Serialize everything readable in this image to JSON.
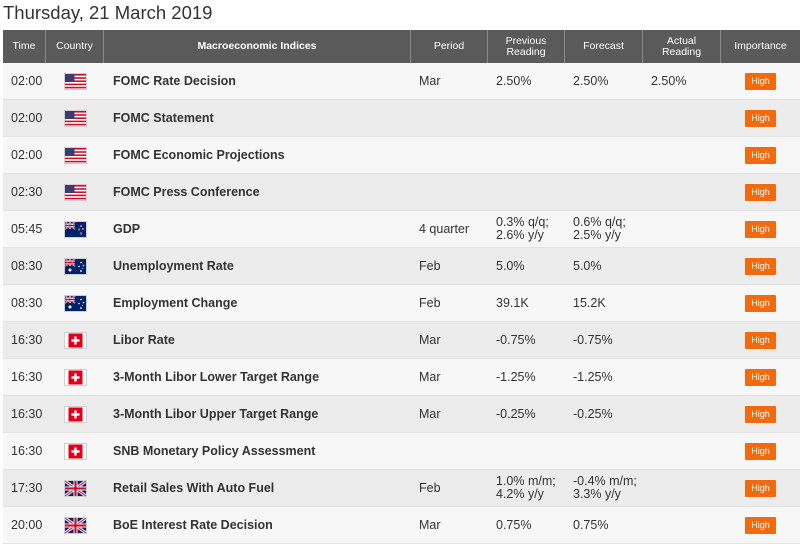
{
  "page": {
    "title": "Thursday, 21 March 2019"
  },
  "table": {
    "headers": {
      "time": "Time",
      "country": "Country",
      "index": "Macroeconomic Indices",
      "period": "Period",
      "previous": "Previous Reading",
      "forecast": "Forecast",
      "actual": "Actual Reading",
      "importance": "Importance"
    },
    "rows": [
      {
        "time": "02:00",
        "flag": "us-flag-icon",
        "index": "FOMC Rate Decision",
        "period": "Mar",
        "previous": [
          "2.50%"
        ],
        "forecast": [
          "2.50%"
        ],
        "actual": "2.50%",
        "importance": "High"
      },
      {
        "time": "02:00",
        "flag": "us-flag-icon",
        "index": "FOMC Statement",
        "period": "",
        "previous": [
          ""
        ],
        "forecast": [
          ""
        ],
        "actual": "",
        "importance": "High"
      },
      {
        "time": "02:00",
        "flag": "us-flag-icon",
        "index": "FOMC Economic Projections",
        "period": "",
        "previous": [
          ""
        ],
        "forecast": [
          ""
        ],
        "actual": "",
        "importance": "High"
      },
      {
        "time": "02:30",
        "flag": "us-flag-icon",
        "index": "FOMC Press Conference",
        "period": "",
        "previous": [
          ""
        ],
        "forecast": [
          ""
        ],
        "actual": "",
        "importance": "High"
      },
      {
        "time": "05:45",
        "flag": "nz-flag-icon",
        "index": "GDP",
        "period": "4 quarter",
        "previous": [
          "0.3% q/q;",
          "2.6% y/y"
        ],
        "forecast": [
          "0.6% q/q;",
          "2.5% y/y"
        ],
        "actual": "",
        "importance": "High"
      },
      {
        "time": "08:30",
        "flag": "au-flag-icon",
        "index": "Unemployment Rate",
        "period": "Feb",
        "previous": [
          "5.0%"
        ],
        "forecast": [
          "5.0%"
        ],
        "actual": "",
        "importance": "High"
      },
      {
        "time": "08:30",
        "flag": "au-flag-icon",
        "index": "Employment Change",
        "period": "Feb",
        "previous": [
          "39.1K"
        ],
        "forecast": [
          "15.2K"
        ],
        "actual": "",
        "importance": "High"
      },
      {
        "time": "16:30",
        "flag": "ch-flag-icon",
        "index": "Libor Rate",
        "period": "Mar",
        "previous": [
          "-0.75%"
        ],
        "forecast": [
          "-0.75%"
        ],
        "actual": "",
        "importance": "High"
      },
      {
        "time": "16:30",
        "flag": "ch-flag-icon",
        "index": "3-Month Libor Lower Target Range",
        "period": "Mar",
        "previous": [
          "-1.25%"
        ],
        "forecast": [
          "-1.25%"
        ],
        "actual": "",
        "importance": "High"
      },
      {
        "time": "16:30",
        "flag": "ch-flag-icon",
        "index": "3-Month Libor Upper Target Range",
        "period": "Mar",
        "previous": [
          "-0.25%"
        ],
        "forecast": [
          "-0.25%"
        ],
        "actual": "",
        "importance": "High"
      },
      {
        "time": "16:30",
        "flag": "ch-flag-icon",
        "index": "SNB Monetary Policy Assessment",
        "period": "",
        "previous": [
          ""
        ],
        "forecast": [
          ""
        ],
        "actual": "",
        "importance": "High"
      },
      {
        "time": "17:30",
        "flag": "uk-flag-icon",
        "index": "Retail Sales With Auto Fuel",
        "period": "Feb",
        "previous": [
          "1.0% m/m;",
          "4.2% y/y"
        ],
        "forecast": [
          "-0.4% m/m;",
          "3.3% y/y"
        ],
        "actual": "",
        "importance": "High"
      },
      {
        "time": "20:00",
        "flag": "uk-flag-icon",
        "index": "BoE Interest Rate Decision",
        "period": "Mar",
        "previous": [
          "0.75%"
        ],
        "forecast": [
          "0.75%"
        ],
        "actual": "",
        "importance": "High"
      }
    ]
  },
  "colors": {
    "header_bg": "#5a5a5a",
    "badge_high": "#f26a10",
    "row_light": "#f7f7f7",
    "row_dark": "#ececec"
  }
}
